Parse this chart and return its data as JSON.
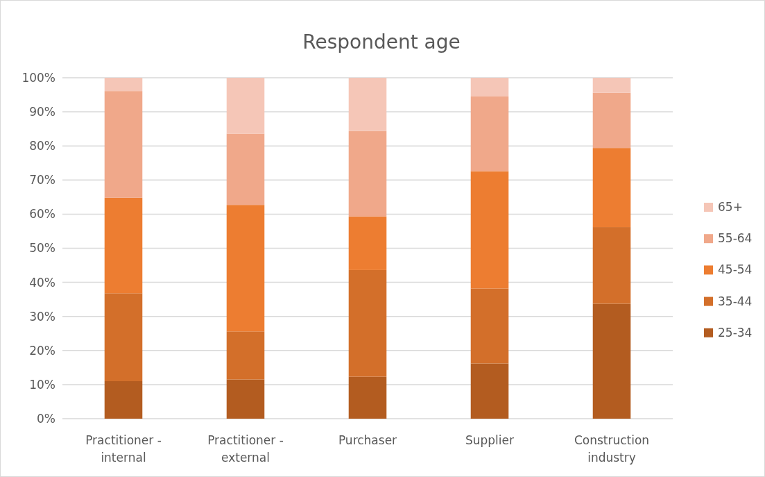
{
  "chart_data": {
    "type": "bar",
    "title": "Respondent age",
    "stacked": true,
    "categories": [
      "Practitioner - internal",
      "Practitioner - external",
      "Purchaser",
      "Supplier",
      "Construction industry"
    ],
    "series": [
      {
        "name": "25-34",
        "color": "#b35c20",
        "values": [
          11.0,
          11.5,
          12.3,
          16.2,
          33.7
        ]
      },
      {
        "name": "35-44",
        "color": "#d36f2a",
        "values": [
          25.8,
          14.1,
          31.3,
          22.0,
          22.5
        ]
      },
      {
        "name": "45-54",
        "color": "#ed7d31",
        "values": [
          28.0,
          37.1,
          15.7,
          34.4,
          23.2
        ]
      },
      {
        "name": "55-64",
        "color": "#f0a88a",
        "values": [
          31.3,
          20.9,
          25.1,
          21.9,
          16.2
        ]
      },
      {
        "name": "65+",
        "color": "#f5c6b7",
        "values": [
          3.9,
          16.4,
          15.6,
          5.5,
          4.4
        ]
      }
    ],
    "ylim": [
      0,
      100
    ],
    "yticks": [
      {
        "value": 0,
        "label": "0%"
      },
      {
        "value": 10,
        "label": "10%"
      },
      {
        "value": 20,
        "label": "20%"
      },
      {
        "value": 30,
        "label": "30%"
      },
      {
        "value": 40,
        "label": "40%"
      },
      {
        "value": 50,
        "label": "50%"
      },
      {
        "value": 60,
        "label": "60%"
      },
      {
        "value": 70,
        "label": "70%"
      },
      {
        "value": 80,
        "label": "80%"
      },
      {
        "value": 90,
        "label": "90%"
      },
      {
        "value": 100,
        "label": "100%"
      }
    ],
    "grid": "y",
    "legend": "right"
  }
}
